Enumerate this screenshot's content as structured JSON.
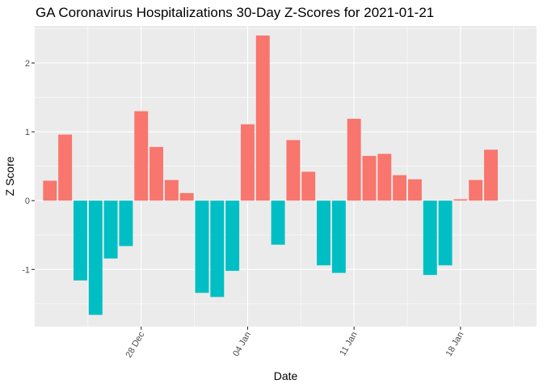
{
  "chart_data": {
    "type": "bar",
    "title": "GA Coronavirus Hospitalizations 30-Day Z-Scores for 2021-01-21",
    "xlabel": "Date",
    "ylabel": "Z Score",
    "x_ticks": [
      {
        "label": "28 Dec",
        "date": "2020-12-28"
      },
      {
        "label": "04 Jan",
        "date": "2021-01-04"
      },
      {
        "label": "11 Jan",
        "date": "2021-01-11"
      },
      {
        "label": "18 Jan",
        "date": "2021-01-18"
      }
    ],
    "y_ticks": [
      -1,
      0,
      1,
      2
    ],
    "ylim": [
      -1.83,
      2.54
    ],
    "xlim": [
      "2020-12-21",
      "2021-01-23"
    ],
    "grid": true,
    "legend": "none",
    "colors": {
      "positive": "#F8766D",
      "negative": "#00BFC4",
      "panel": "#EBEBEB",
      "grid": "#FFFFFF"
    },
    "x": [
      "2020-12-22",
      "2020-12-23",
      "2020-12-24",
      "2020-12-25",
      "2020-12-26",
      "2020-12-27",
      "2020-12-28",
      "2020-12-29",
      "2020-12-30",
      "2020-12-31",
      "2021-01-01",
      "2021-01-02",
      "2021-01-03",
      "2021-01-04",
      "2021-01-05",
      "2021-01-06",
      "2021-01-07",
      "2021-01-08",
      "2021-01-09",
      "2021-01-10",
      "2021-01-11",
      "2021-01-12",
      "2021-01-13",
      "2021-01-14",
      "2021-01-15",
      "2021-01-16",
      "2021-01-17",
      "2021-01-18",
      "2021-01-19",
      "2021-01-20",
      "2021-01-21"
    ],
    "values": [
      0.29,
      0.96,
      -1.16,
      -1.66,
      -0.84,
      -0.66,
      1.3,
      0.78,
      0.3,
      0.11,
      -1.34,
      -1.4,
      -1.02,
      1.11,
      2.4,
      -0.64,
      0.88,
      0.42,
      -0.94,
      -1.05,
      1.19,
      0.65,
      0.68,
      0.37,
      0.31,
      -1.08,
      -0.94,
      0.02,
      0.3,
      0.74,
      0.0
    ]
  }
}
